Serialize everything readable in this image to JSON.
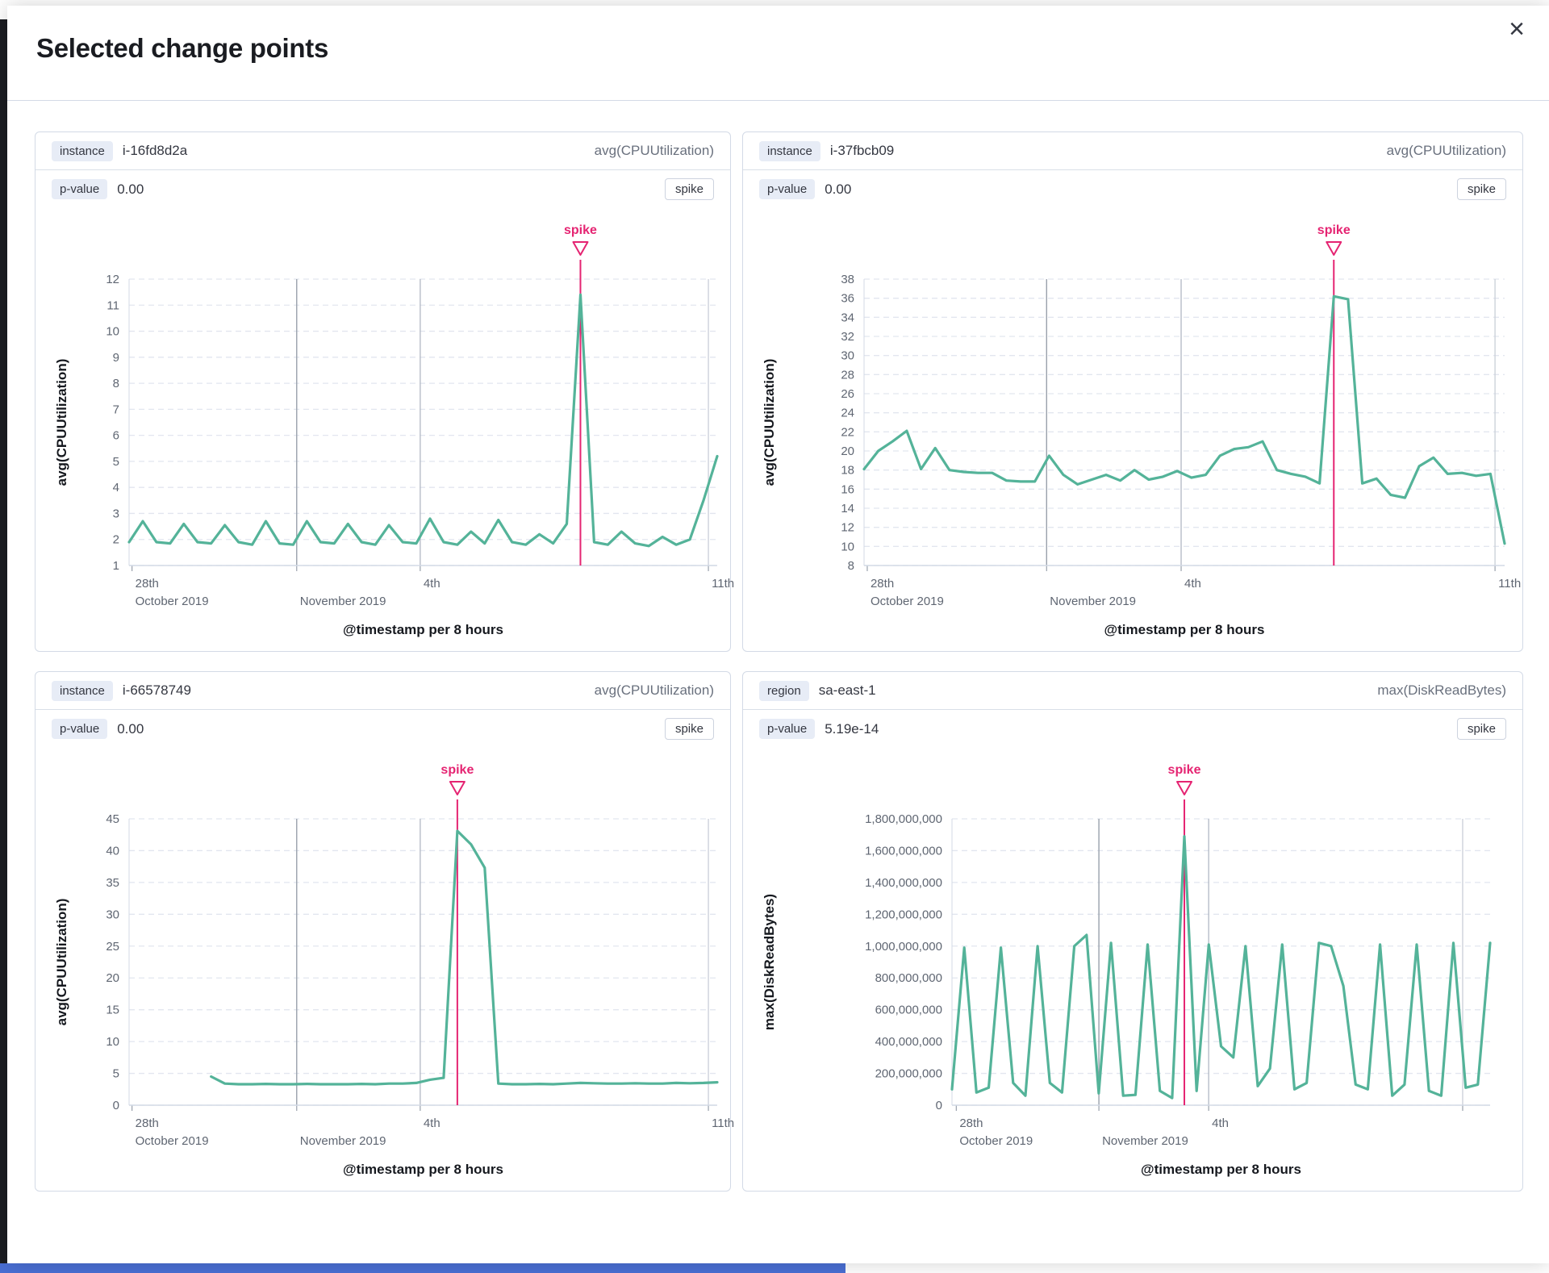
{
  "flyout": {
    "title": "Selected change points",
    "close_icon": "×"
  },
  "colors": {
    "line": "#54B399",
    "spike": "#E52472",
    "grid": "#e2e6ef",
    "vline_dark": "#99a1ac",
    "vline_mid": "#b7bdc8",
    "vline_light": "#cdd2db",
    "axis": "#d3dae6",
    "tick_text": "#5f6672",
    "dark_strip": "#1b1d22",
    "bottom_bar": "#4a6fd4"
  },
  "panels": [
    {
      "key_label": "instance",
      "key_value": "i-16fd8d2a",
      "metric": "avg(CPUUtilization)",
      "p_label": "p-value",
      "p_value": "0.00",
      "badge": "spike"
    },
    {
      "key_label": "instance",
      "key_value": "i-37fbcb09",
      "metric": "avg(CPUUtilization)",
      "p_label": "p-value",
      "p_value": "0.00",
      "badge": "spike"
    },
    {
      "key_label": "instance",
      "key_value": "i-66578749",
      "metric": "avg(CPUUtilization)",
      "p_label": "p-value",
      "p_value": "0.00",
      "badge": "spike"
    },
    {
      "key_label": "region",
      "key_value": "sa-east-1",
      "metric": "max(DiskReadBytes)",
      "p_label": "p-value",
      "p_value": "5.19e-14",
      "badge": "spike"
    }
  ],
  "chart_data": [
    {
      "type": "line",
      "ylabel": "avg(CPUUtilization)",
      "xlabel": "@timestamp per 8 hours",
      "annotation": "spike",
      "ylim": [
        1,
        12
      ],
      "yticks": [
        {
          "v": 1,
          "label": "1"
        },
        {
          "v": 2,
          "label": "2"
        },
        {
          "v": 3,
          "label": "3"
        },
        {
          "v": 4,
          "label": "4"
        },
        {
          "v": 5,
          "label": "5"
        },
        {
          "v": 6,
          "label": "6"
        },
        {
          "v": 7,
          "label": "7"
        },
        {
          "v": 8,
          "label": "8"
        },
        {
          "v": 9,
          "label": "9"
        },
        {
          "v": 10,
          "label": "10"
        },
        {
          "v": 11,
          "label": "11"
        },
        {
          "v": 12,
          "label": "12"
        }
      ],
      "xticks": [
        {
          "f": 0.005,
          "l1": "28th",
          "l2": "October 2019",
          "line": "tick"
        },
        {
          "f": 0.285,
          "l2": "November 2019",
          "line": "dark"
        },
        {
          "f": 0.495,
          "l1": "4th",
          "line": "mid"
        },
        {
          "f": 0.985,
          "l1": "11th",
          "line": "light"
        }
      ],
      "spike_index": 33,
      "values": [
        1.9,
        2.7,
        1.9,
        1.85,
        2.6,
        1.9,
        1.85,
        2.55,
        1.9,
        1.8,
        2.7,
        1.85,
        1.8,
        2.7,
        1.9,
        1.85,
        2.6,
        1.9,
        1.8,
        2.55,
        1.9,
        1.85,
        2.8,
        1.9,
        1.8,
        2.3,
        1.85,
        2.75,
        1.9,
        1.8,
        2.2,
        1.85,
        2.6,
        11.4,
        1.9,
        1.8,
        2.3,
        1.85,
        1.75,
        2.1,
        1.8,
        2.0,
        3.5,
        5.2
      ]
    },
    {
      "type": "line",
      "ylabel": "avg(CPUUtilization)",
      "xlabel": "@timestamp per 8 hours",
      "annotation": "spike",
      "ylim": [
        8,
        38
      ],
      "yticks": [
        {
          "v": 8,
          "label": "8"
        },
        {
          "v": 10,
          "label": "10"
        },
        {
          "v": 12,
          "label": "12"
        },
        {
          "v": 14,
          "label": "14"
        },
        {
          "v": 16,
          "label": "16"
        },
        {
          "v": 18,
          "label": "18"
        },
        {
          "v": 20,
          "label": "20"
        },
        {
          "v": 22,
          "label": "22"
        },
        {
          "v": 24,
          "label": "24"
        },
        {
          "v": 26,
          "label": "26"
        },
        {
          "v": 28,
          "label": "28"
        },
        {
          "v": 30,
          "label": "30"
        },
        {
          "v": 32,
          "label": "32"
        },
        {
          "v": 34,
          "label": "34"
        },
        {
          "v": 36,
          "label": "36"
        },
        {
          "v": 38,
          "label": "38"
        }
      ],
      "xticks": [
        {
          "f": 0.005,
          "l1": "28th",
          "l2": "October 2019",
          "line": "tick"
        },
        {
          "f": 0.285,
          "l2": "November 2019",
          "line": "dark"
        },
        {
          "f": 0.495,
          "l1": "4th",
          "line": "mid"
        },
        {
          "f": 0.985,
          "l1": "11th",
          "line": "light"
        }
      ],
      "spike_index": 33,
      "values": [
        18.1,
        20.0,
        21.0,
        22.1,
        18.1,
        20.3,
        18.0,
        17.8,
        17.7,
        17.7,
        16.9,
        16.8,
        16.8,
        19.5,
        17.5,
        16.5,
        17.0,
        17.5,
        16.9,
        18.0,
        17.0,
        17.3,
        17.9,
        17.2,
        17.5,
        19.5,
        20.2,
        20.4,
        21.0,
        18.0,
        17.6,
        17.3,
        16.6,
        36.2,
        35.9,
        16.6,
        17.1,
        15.4,
        15.1,
        18.4,
        19.3,
        17.6,
        17.7,
        17.4,
        17.6,
        10.3
      ]
    },
    {
      "type": "line",
      "ylabel": "avg(CPUUtilization)",
      "xlabel": "@timestamp per 8 hours",
      "annotation": "spike",
      "ylim": [
        0,
        45
      ],
      "yticks": [
        {
          "v": 0,
          "label": "0"
        },
        {
          "v": 5,
          "label": "5"
        },
        {
          "v": 10,
          "label": "10"
        },
        {
          "v": 15,
          "label": "15"
        },
        {
          "v": 20,
          "label": "20"
        },
        {
          "v": 25,
          "label": "25"
        },
        {
          "v": 30,
          "label": "30"
        },
        {
          "v": 35,
          "label": "35"
        },
        {
          "v": 40,
          "label": "40"
        },
        {
          "v": 45,
          "label": "45"
        }
      ],
      "xticks": [
        {
          "f": 0.005,
          "l1": "28th",
          "l2": "October 2019",
          "line": "tick"
        },
        {
          "f": 0.285,
          "l2": "November 2019",
          "line": "dark"
        },
        {
          "f": 0.495,
          "l1": "4th",
          "line": "mid"
        },
        {
          "f": 0.985,
          "l1": "11th",
          "line": "light"
        }
      ],
      "spike_index": 24,
      "values": [
        null,
        null,
        null,
        null,
        null,
        null,
        4.5,
        3.4,
        3.3,
        3.3,
        3.35,
        3.3,
        3.3,
        3.35,
        3.3,
        3.3,
        3.3,
        3.35,
        3.3,
        3.4,
        3.4,
        3.5,
        4.0,
        4.3,
        43.1,
        41.0,
        37.3,
        3.4,
        3.3,
        3.3,
        3.35,
        3.3,
        3.4,
        3.5,
        3.45,
        3.4,
        3.4,
        3.45,
        3.4,
        3.4,
        3.5,
        3.45,
        3.5,
        3.6
      ]
    },
    {
      "type": "line",
      "ylabel": "max(DiskReadBytes)",
      "xlabel": "@timestamp per 8 hours",
      "annotation": "spike",
      "ylim": [
        0,
        1800000000
      ],
      "yticks": [
        {
          "v": 0,
          "label": "0"
        },
        {
          "v": 200000000,
          "label": "200,000,000"
        },
        {
          "v": 400000000,
          "label": "400,000,000"
        },
        {
          "v": 600000000,
          "label": "600,000,000"
        },
        {
          "v": 800000000,
          "label": "800,000,000"
        },
        {
          "v": 1000000000,
          "label": "1,000,000,000"
        },
        {
          "v": 1200000000,
          "label": "1,200,000,000"
        },
        {
          "v": 1400000000,
          "label": "1,400,000,000"
        },
        {
          "v": 1600000000,
          "label": "1,600,000,000"
        },
        {
          "v": 1800000000,
          "label": "1,800,000,000"
        }
      ],
      "xticks": [
        {
          "f": 0.008,
          "l1": "28th",
          "l2": "October 2019",
          "line": "tick"
        },
        {
          "f": 0.273,
          "l2": "November 2019",
          "line": "dark"
        },
        {
          "f": 0.477,
          "l1": "4th",
          "line": "mid"
        },
        {
          "f": 0.949,
          "line": "light"
        }
      ],
      "spike_index": 19,
      "values": [
        100000000,
        990000000,
        80000000,
        110000000,
        990000000,
        140000000,
        60000000,
        1000000000,
        140000000,
        80000000,
        1000000000,
        1070000000,
        75000000,
        1020000000,
        60000000,
        65000000,
        1010000000,
        90000000,
        45000000,
        1690000000,
        90000000,
        1010000000,
        370000000,
        300000000,
        1000000000,
        120000000,
        230000000,
        1010000000,
        100000000,
        140000000,
        1020000000,
        1000000000,
        750000000,
        130000000,
        100000000,
        1010000000,
        60000000,
        130000000,
        1010000000,
        90000000,
        60000000,
        1020000000,
        110000000,
        130000000,
        1020000000
      ]
    }
  ]
}
